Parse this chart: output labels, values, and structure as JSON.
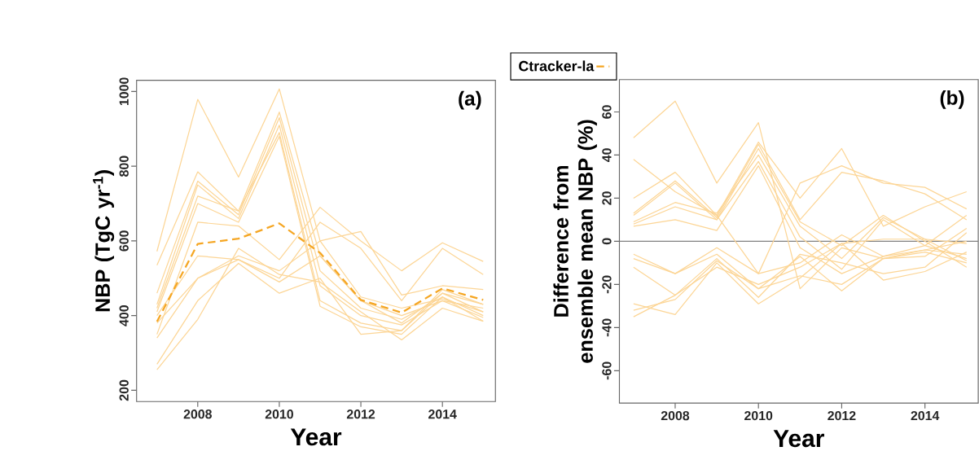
{
  "chart_data": [
    {
      "type": "line",
      "x": [
        2007,
        2008,
        2009,
        2010,
        2011,
        2012,
        2013,
        2014,
        2015
      ],
      "xlabel": "Year",
      "ylabel": "NBP (TgC yr$^{-1}$)",
      "annotations": [
        "(a)"
      ],
      "xlim": [
        2006.5,
        2015.3
      ],
      "ylim": [
        170,
        1030
      ],
      "xticks": [
        2008,
        2010,
        2012,
        2014
      ],
      "yticks": [
        200,
        400,
        600,
        800,
        1000
      ],
      "legend": "top",
      "series": [
        {
          "color": "#fcd595",
          "values": [
            572,
            979,
            771,
            1007,
            600,
            450,
            420,
            445,
            410
          ]
        },
        {
          "color": "#fcd595",
          "values": [
            535,
            785,
            680,
            945,
            560,
            440,
            400,
            440,
            420
          ]
        },
        {
          "color": "#fcd595",
          "values": [
            460,
            760,
            670,
            930,
            520,
            420,
            390,
            450,
            400
          ]
        },
        {
          "color": "#fcd595",
          "values": [
            430,
            750,
            660,
            910,
            480,
            400,
            375,
            440,
            395
          ]
        },
        {
          "color": "#fcd595",
          "values": [
            420,
            720,
            680,
            890,
            440,
            380,
            360,
            460,
            430
          ]
        },
        {
          "color": "#fcd595",
          "values": [
            410,
            700,
            650,
            880,
            425,
            370,
            350,
            450,
            385
          ]
        },
        {
          "color": "#fcd595",
          "values": [
            350,
            650,
            640,
            550,
            690,
            600,
            520,
            595,
            545
          ]
        },
        {
          "color": "#fcd595",
          "values": [
            400,
            560,
            550,
            500,
            650,
            580,
            440,
            580,
            510
          ]
        },
        {
          "color": "#fcd595",
          "values": [
            380,
            500,
            560,
            520,
            600,
            625,
            455,
            480,
            470
          ]
        },
        {
          "color": "#fcd595",
          "values": [
            340,
            500,
            550,
            490,
            560,
            440,
            380,
            460,
            410
          ]
        },
        {
          "color": "#fcd595",
          "values": [
            270,
            440,
            540,
            460,
            500,
            350,
            360,
            470,
            430
          ]
        },
        {
          "color": "#fcd595",
          "values": [
            255,
            390,
            580,
            510,
            490,
            410,
            335,
            420,
            385
          ]
        },
        {
          "name": "Ctracker-la",
          "color": "#f5a623",
          "line_style": "dashed",
          "values": [
            384,
            592,
            606,
            647,
            568,
            442,
            408,
            473,
            442
          ]
        }
      ]
    },
    {
      "type": "line",
      "x": [
        2007,
        2008,
        2009,
        2010,
        2011,
        2012,
        2013,
        2014,
        2015
      ],
      "xlabel": "Year",
      "ylabel": "Difference from ensemble mean NBP (%)",
      "annotations": [
        "(b)"
      ],
      "xlim": [
        2006.66,
        2015.28
      ],
      "ylim": [
        -75,
        75
      ],
      "xticks": [
        2008,
        2010,
        2012,
        2014
      ],
      "yticks": [
        -60,
        -40,
        -20,
        0,
        20,
        40,
        60
      ],
      "ref_lines": [
        {
          "axis": "y",
          "value": 0,
          "color": "#808080"
        }
      ],
      "series": [
        {
          "color": "#fcd595",
          "values": [
            48,
            65,
            27,
            55,
            -22,
            -3,
            -8,
            -5,
            -10
          ]
        },
        {
          "color": "#fcd595",
          "values": [
            38,
            23,
            12,
            -15,
            27,
            35,
            27,
            25,
            15
          ]
        },
        {
          "color": "#fcd595",
          "values": [
            20,
            32,
            12,
            46,
            20,
            43,
            7,
            16,
            23
          ]
        },
        {
          "color": "#fcd595",
          "values": [
            13,
            28,
            11,
            45,
            10,
            32,
            28,
            22,
            10
          ]
        },
        {
          "color": "#fcd595",
          "values": [
            12,
            27,
            10,
            43,
            9,
            -2,
            12,
            0,
            -12
          ]
        },
        {
          "color": "#fcd595",
          "values": [
            9,
            18,
            13,
            40,
            7,
            -8,
            11,
            1,
            -9
          ]
        },
        {
          "color": "#fcd595",
          "values": [
            8,
            16,
            10,
            37,
            2,
            -13,
            10,
            -2,
            -8
          ]
        },
        {
          "color": "#fcd595",
          "values": [
            7,
            10,
            5,
            35,
            -3,
            -15,
            -7,
            -4,
            -6
          ]
        },
        {
          "color": "#fcd595",
          "values": [
            -6,
            -15,
            -3,
            -15,
            -10,
            3,
            -7,
            -2,
            12
          ]
        },
        {
          "color": "#fcd595",
          "values": [
            -8,
            -15,
            -6,
            -22,
            -16,
            -20,
            -8,
            -7,
            6
          ]
        },
        {
          "color": "#fcd595",
          "values": [
            -12,
            -25,
            -8,
            -26,
            -6,
            -10,
            -15,
            -12,
            4
          ]
        },
        {
          "color": "#fcd595",
          "values": [
            -29,
            -34,
            -10,
            -29,
            -17,
            -1,
            -18,
            -14,
            -5
          ]
        },
        {
          "color": "#fcd595",
          "values": [
            -32,
            -27,
            -9,
            -22,
            -7,
            -23,
            -8,
            -4,
            0
          ]
        },
        {
          "color": "#fcd595",
          "values": [
            -35,
            -25,
            -12,
            -20,
            -12,
            -1,
            1,
            1,
            -1
          ]
        }
      ]
    }
  ]
}
